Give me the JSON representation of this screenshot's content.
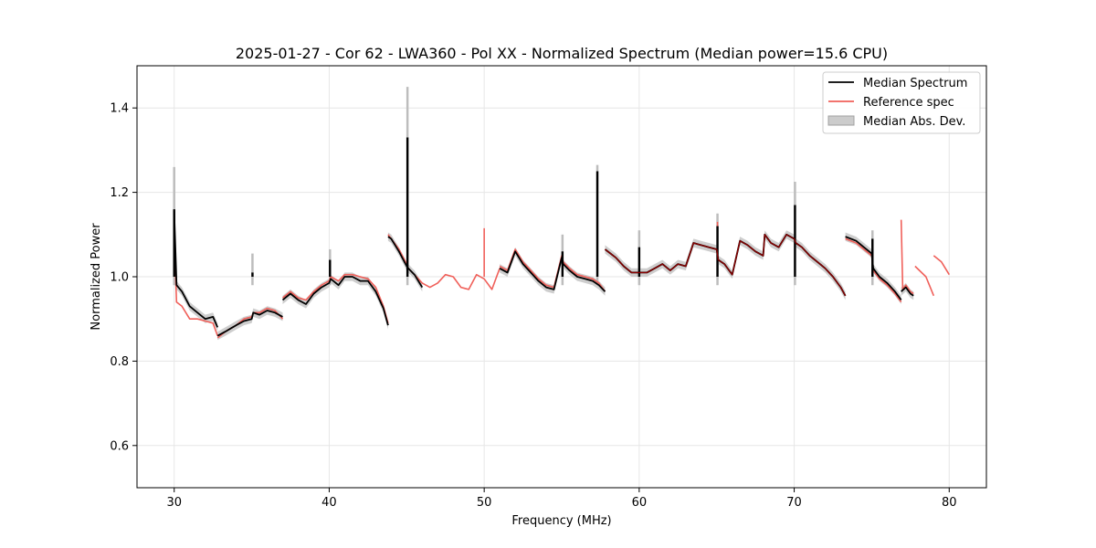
{
  "chart_data": {
    "type": "line",
    "title": "2025-01-27 - Cor 62 - LWA360 - Pol XX - Normalized Spectrum (Median power=15.6 CPU)",
    "xlabel": "Frequency (MHz)",
    "ylabel": "Normalized Power",
    "xlim": [
      27.6,
      82.4
    ],
    "ylim": [
      0.5,
      1.5
    ],
    "xticks": [
      30,
      40,
      50,
      60,
      70,
      80
    ],
    "yticks": [
      0.6,
      0.8,
      1.0,
      1.2,
      1.4
    ],
    "xtick_labels": [
      "30",
      "40",
      "50",
      "60",
      "70",
      "80"
    ],
    "ytick_labels": [
      "0.6",
      "0.8",
      "1.0",
      "1.2",
      "1.4"
    ],
    "grid": true,
    "legend_position": "top-right",
    "legend": [
      "Median Spectrum",
      "Reference spec",
      "Median Abs. Dev."
    ],
    "colors": {
      "median": "#000000",
      "reference": "#f0605a",
      "overlap": "#8b0000",
      "mad": "#bdbdbd",
      "grid": "#e6e6e6"
    },
    "series": [
      {
        "name": "Median Spectrum",
        "segments": [
          {
            "x": [
              30.0,
              30.15,
              30.5,
              31.0,
              31.5,
              32.0,
              32.5,
              32.8
            ],
            "y": [
              1.155,
              0.98,
              0.965,
              0.93,
              0.915,
              0.9,
              0.905,
              0.88
            ]
          },
          {
            "x": [
              32.8,
              33.3,
              34.0,
              34.5,
              35.0,
              35.1,
              35.5,
              36.0,
              36.5,
              37.0
            ],
            "y": [
              0.86,
              0.87,
              0.885,
              0.895,
              0.9,
              0.915,
              0.91,
              0.92,
              0.915,
              0.905
            ]
          },
          {
            "x": [
              37.0,
              37.5,
              38.0,
              38.5,
              39.0,
              39.5,
              40.0,
              40.1,
              40.6,
              41.0,
              41.5,
              42.0,
              42.5,
              43.0,
              43.5,
              43.8
            ],
            "y": [
              0.945,
              0.96,
              0.945,
              0.935,
              0.96,
              0.975,
              0.985,
              0.995,
              0.98,
              1.0,
              1.0,
              0.99,
              0.99,
              0.965,
              0.925,
              0.885
            ]
          },
          {
            "x": [
              43.8,
              44.0,
              44.5,
              45.0,
              45.1,
              45.5,
              46.0
            ],
            "y": [
              1.095,
              1.09,
              1.06,
              1.025,
              1.02,
              1.005,
              0.975
            ]
          },
          {
            "x": [
              51.0,
              51.5,
              52.0,
              52.5,
              53.0,
              53.5,
              54.0,
              54.5,
              55.0,
              55.1,
              55.5,
              56.0,
              56.5,
              57.0,
              57.2,
              57.4,
              57.8
            ],
            "y": [
              1.02,
              1.01,
              1.06,
              1.03,
              1.01,
              0.99,
              0.975,
              0.97,
              1.045,
              1.03,
              1.015,
              1.0,
              0.995,
              0.99,
              0.985,
              0.98,
              0.965
            ]
          },
          {
            "x": [
              57.8,
              58.5,
              59.0,
              59.5,
              60.0,
              60.5,
              61.0,
              61.5,
              62.0,
              62.5,
              63.0,
              63.5,
              64.0,
              64.5,
              65.0,
              65.1,
              65.5,
              66.0,
              66.5,
              67.0,
              67.5,
              68.0,
              68.1,
              68.5,
              69.0,
              69.5,
              70.0,
              70.1,
              70.5,
              71.0,
              71.5,
              72.0,
              72.5,
              73.0,
              73.3
            ],
            "y": [
              1.065,
              1.045,
              1.025,
              1.01,
              1.01,
              1.01,
              1.02,
              1.03,
              1.015,
              1.03,
              1.025,
              1.08,
              1.075,
              1.07,
              1.065,
              1.04,
              1.03,
              1.005,
              1.085,
              1.075,
              1.06,
              1.05,
              1.1,
              1.08,
              1.07,
              1.1,
              1.09,
              1.08,
              1.07,
              1.05,
              1.035,
              1.02,
              1.0,
              0.975,
              0.955
            ]
          },
          {
            "x": [
              73.3,
              74.0,
              74.5,
              75.0,
              75.1,
              75.5,
              76.0,
              76.5,
              76.9
            ],
            "y": [
              1.095,
              1.085,
              1.07,
              1.055,
              1.02,
              1.0,
              0.985,
              0.965,
              0.945
            ]
          },
          {
            "x": [
              76.9,
              77.2,
              77.5,
              77.7
            ],
            "y": [
              0.965,
              0.975,
              0.96,
              0.955
            ]
          }
        ],
        "spikes": [
          {
            "x": 30.0,
            "y": 1.16
          },
          {
            "x": 35.05,
            "y": 1.01
          },
          {
            "x": 40.05,
            "y": 1.04
          },
          {
            "x": 45.05,
            "y": 1.33
          },
          {
            "x": 55.05,
            "y": 1.06
          },
          {
            "x": 57.3,
            "y": 1.25
          },
          {
            "x": 60.0,
            "y": 1.07
          },
          {
            "x": 65.05,
            "y": 1.12
          },
          {
            "x": 70.05,
            "y": 1.17
          },
          {
            "x": 75.05,
            "y": 1.09
          }
        ]
      },
      {
        "name": "Reference spec",
        "segments": [
          {
            "x": [
              30.0,
              30.15,
              30.5,
              31.0,
              31.5,
              32.0,
              32.5,
              32.8
            ],
            "y": [
              1.1,
              0.94,
              0.93,
              0.9,
              0.9,
              0.895,
              0.89,
              0.86
            ]
          },
          {
            "x": [
              32.8,
              33.3,
              34.0,
              34.5,
              35.0,
              35.1,
              35.5,
              36.0,
              36.5,
              37.0
            ],
            "y": [
              0.855,
              0.87,
              0.885,
              0.9,
              0.905,
              0.915,
              0.915,
              0.925,
              0.92,
              0.9
            ]
          },
          {
            "x": [
              37.0,
              37.5,
              38.0,
              38.5,
              39.0,
              39.5,
              40.0,
              40.1,
              40.6,
              41.0,
              41.5,
              42.0,
              42.5,
              43.0,
              43.5,
              43.8
            ],
            "y": [
              0.95,
              0.965,
              0.95,
              0.945,
              0.965,
              0.98,
              0.99,
              1.0,
              0.99,
              1.005,
              1.005,
              1.0,
              0.995,
              0.975,
              0.93,
              0.89
            ]
          },
          {
            "x": [
              43.8,
              44.0,
              44.5,
              45.0,
              45.1,
              45.5,
              46.0,
              46.5,
              47.0,
              47.5,
              48.0,
              48.5,
              49.0,
              49.5,
              50.0,
              50.5,
              51.0
            ],
            "y": [
              1.1,
              1.09,
              1.065,
              1.03,
              1.02,
              1.005,
              0.985,
              0.975,
              0.985,
              1.005,
              1.0,
              0.975,
              0.97,
              1.005,
              0.995,
              0.97,
              1.02
            ]
          },
          {
            "x": [
              51.0,
              51.5,
              52.0,
              52.5,
              53.0,
              53.5,
              54.0,
              54.5,
              55.0,
              55.1,
              55.5,
              56.0,
              56.5,
              57.0,
              57.2,
              57.4,
              57.8
            ],
            "y": [
              1.025,
              1.015,
              1.065,
              1.035,
              1.015,
              0.995,
              0.98,
              0.975,
              1.05,
              1.035,
              1.02,
              1.005,
              1.0,
              0.995,
              0.99,
              0.985,
              0.965
            ]
          },
          {
            "x": [
              57.8,
              58.5,
              59.0,
              59.5,
              60.0,
              60.5,
              61.0,
              61.5,
              62.0,
              62.5,
              63.0,
              63.5,
              64.0,
              64.5,
              65.0,
              65.1,
              65.5,
              66.0,
              66.5,
              67.0,
              67.5,
              68.0,
              68.1,
              68.5,
              69.0,
              69.5,
              70.0,
              70.1,
              70.5,
              71.0,
              71.5,
              72.0,
              72.5,
              73.0,
              73.3
            ],
            "y": [
              1.065,
              1.045,
              1.025,
              1.01,
              1.01,
              1.01,
              1.02,
              1.03,
              1.015,
              1.03,
              1.025,
              1.08,
              1.075,
              1.07,
              1.065,
              1.04,
              1.03,
              1.005,
              1.085,
              1.075,
              1.06,
              1.05,
              1.1,
              1.08,
              1.07,
              1.1,
              1.09,
              1.08,
              1.07,
              1.05,
              1.035,
              1.02,
              1.0,
              0.975,
              0.955
            ]
          },
          {
            "x": [
              73.3,
              74.0,
              74.5,
              75.0,
              75.1,
              75.5,
              76.0,
              76.5,
              76.9
            ],
            "y": [
              1.09,
              1.08,
              1.065,
              1.05,
              1.015,
              0.995,
              0.98,
              0.96,
              0.94
            ]
          },
          {
            "x": [
              76.9,
              77.0,
              77.2,
              77.5,
              77.7
            ],
            "y": [
              1.135,
              0.97,
              0.98,
              0.965,
              0.96
            ]
          },
          {
            "x": [
              77.8,
              78.5,
              79.0
            ],
            "y": [
              1.025,
              1.0,
              0.955
            ]
          },
          {
            "x": [
              79.0,
              79.5,
              80.0
            ],
            "y": [
              1.05,
              1.035,
              1.005
            ]
          }
        ],
        "spikes": [
          {
            "x": 30.0,
            "y": 1.1
          },
          {
            "x": 45.05,
            "y": 1.26
          },
          {
            "x": 50.0,
            "y": 1.115
          },
          {
            "x": 57.3,
            "y": 1.07
          },
          {
            "x": 65.05,
            "y": 1.13
          },
          {
            "x": 70.05,
            "y": 1.16
          },
          {
            "x": 75.05,
            "y": 1.08
          }
        ]
      },
      {
        "name": "Median Abs. Dev.",
        "band_halfwidth": 0.01,
        "spikes": [
          {
            "x": 30.0,
            "y": 1.26
          },
          {
            "x": 35.05,
            "y": 1.055
          },
          {
            "x": 40.05,
            "y": 1.065
          },
          {
            "x": 45.05,
            "y": 1.45
          },
          {
            "x": 55.05,
            "y": 1.1
          },
          {
            "x": 57.3,
            "y": 1.265
          },
          {
            "x": 60.0,
            "y": 1.11
          },
          {
            "x": 65.05,
            "y": 1.15
          },
          {
            "x": 70.05,
            "y": 1.225
          },
          {
            "x": 75.05,
            "y": 1.11
          }
        ]
      }
    ]
  }
}
